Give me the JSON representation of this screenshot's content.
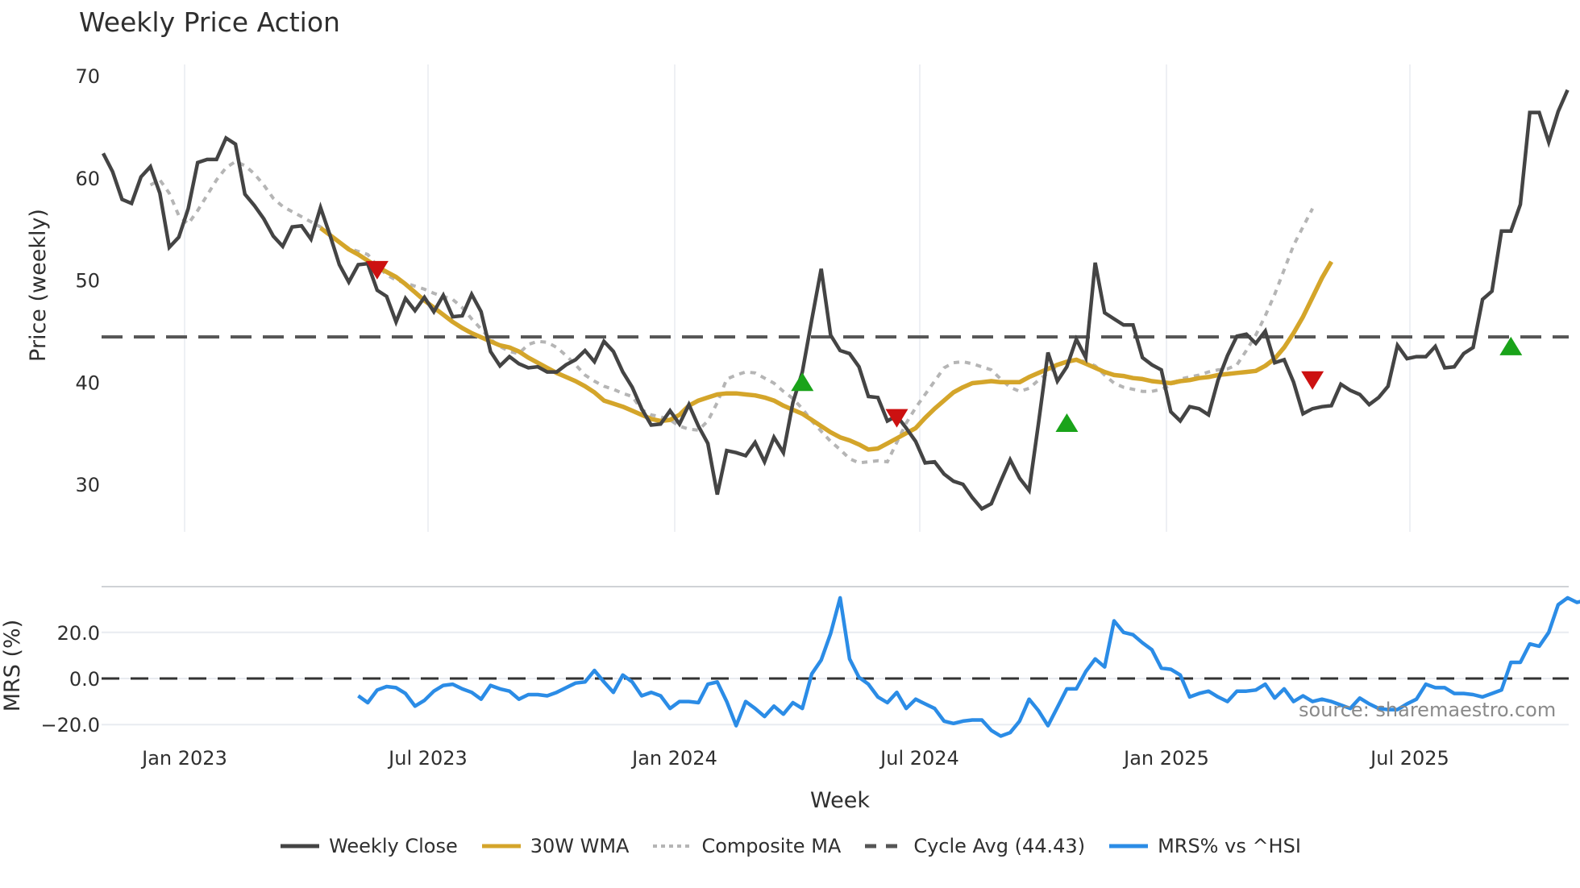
{
  "title": "Weekly Price Action",
  "source_label": "source: sharemaestro.com",
  "colors": {
    "close": "#444444",
    "wma": "#d4a52a",
    "composite": "#b5b5b5",
    "cycle": "#555555",
    "mrs": "#2b8ce6",
    "buy": "#1aa31a",
    "sell": "#cc1111",
    "grid": "#e8ebf0"
  },
  "legend": [
    {
      "key": "close",
      "label": "Weekly Close",
      "style": "solid"
    },
    {
      "key": "wma",
      "label": "30W WMA",
      "style": "solid"
    },
    {
      "key": "composite",
      "label": "Composite MA",
      "style": "dotted"
    },
    {
      "key": "cycle",
      "label": "Cycle Avg (44.43)",
      "style": "dashed"
    },
    {
      "key": "mrs",
      "label": "MRS% vs ^HSI",
      "style": "solid"
    }
  ],
  "chart_data": [
    {
      "type": "line",
      "title": "Weekly Price Action",
      "xlabel": "Week",
      "ylabel": "Price (weekly)",
      "ylim": [
        25.5,
        71
      ],
      "yticks": [
        30,
        40,
        50,
        60,
        70
      ],
      "xticks": [
        "Jan 2023",
        "Jul 2023",
        "Jan 2024",
        "Jul 2024",
        "Jan 2025",
        "Jul 2025"
      ],
      "grid": true,
      "legend_position": "bottom",
      "x_start": "2022-11-07",
      "x_step_weeks": 1,
      "series": [
        {
          "name": "Weekly Close",
          "values": [
            62.4,
            60.6,
            57.9,
            57.5,
            60.1,
            61.1,
            58.5,
            53.2,
            54.2,
            57.0,
            61.5,
            61.8,
            61.8,
            63.9,
            63.3,
            58.4,
            57.3,
            56.0,
            54.3,
            53.3,
            55.2,
            55.3,
            54.0,
            57.1,
            54.4,
            51.5,
            49.8,
            51.5,
            51.6,
            49.0,
            48.4,
            45.9,
            48.2,
            47.0,
            48.3,
            46.9,
            48.5,
            46.4,
            46.5,
            48.6,
            46.9,
            43.0,
            41.6,
            42.5,
            41.8,
            41.4,
            41.5,
            41.0,
            41.0,
            41.7,
            42.2,
            43.1,
            42.0,
            44.0,
            43.0,
            41.0,
            39.5,
            37.4,
            35.8,
            35.9,
            37.2,
            35.9,
            37.8,
            35.7,
            34.0,
            29.0,
            33.3,
            33.1,
            32.8,
            34.1,
            32.2,
            34.6,
            33.1,
            38.0,
            41.0,
            46.1,
            51.1,
            44.6,
            43.1,
            42.8,
            41.5,
            38.6,
            38.5,
            36.2,
            36.7,
            35.5,
            34.2,
            32.1,
            32.2,
            31.0,
            30.3,
            30.0,
            28.7,
            27.6,
            28.1,
            30.3,
            32.4,
            30.6,
            29.4,
            36.0,
            42.9,
            40.1,
            41.5,
            44.2,
            42.4,
            51.7,
            46.8,
            46.2,
            45.6,
            45.6,
            42.4,
            41.7,
            41.2,
            37.1,
            36.2,
            37.6,
            37.4,
            36.8,
            40.2,
            42.6,
            44.5,
            44.7,
            43.8,
            45.0,
            41.9,
            42.2,
            40.0,
            36.9,
            37.4,
            37.6,
            37.7,
            39.8,
            39.2,
            38.8,
            37.8,
            38.5,
            39.6,
            43.6,
            42.3,
            42.5,
            42.5,
            43.5,
            41.4,
            41.5,
            42.8,
            43.4,
            48.1,
            48.9,
            54.8,
            54.8,
            57.4,
            66.4,
            66.4,
            63.5,
            66.5,
            68.6
          ]
        },
        {
          "name": "30W WMA",
          "start_index": 23,
          "values": [
            55.1,
            54.4,
            53.7,
            53.0,
            52.5,
            51.9,
            51.3,
            50.8,
            50.3,
            49.6,
            48.8,
            48.0,
            47.3,
            46.6,
            45.9,
            45.3,
            44.8,
            44.4,
            44.0,
            43.6,
            43.4,
            43.0,
            42.4,
            41.9,
            41.4,
            40.9,
            40.5,
            40.1,
            39.6,
            39.0,
            38.2,
            37.9,
            37.6,
            37.2,
            36.8,
            36.4,
            36.2,
            36.3,
            36.8,
            37.7,
            38.2,
            38.5,
            38.8,
            38.9,
            38.9,
            38.8,
            38.7,
            38.5,
            38.2,
            37.7,
            37.3,
            36.9,
            36.3,
            35.7,
            35.1,
            34.6,
            34.3,
            33.9,
            33.4,
            33.5,
            34.0,
            34.5,
            35.0,
            35.5,
            36.5,
            37.4,
            38.2,
            39.0,
            39.5,
            39.9,
            40.0,
            40.1,
            40.0,
            40.0,
            40.0,
            40.5,
            40.9,
            41.3,
            41.7,
            42.0,
            42.2,
            41.8,
            41.4,
            41.0,
            40.7,
            40.6,
            40.4,
            40.3,
            40.1,
            40.0,
            39.9,
            40.1,
            40.2,
            40.4,
            40.5,
            40.7,
            40.8,
            40.9,
            41.0,
            41.1,
            41.6,
            42.3,
            43.4,
            44.8,
            46.4,
            48.3,
            50.2,
            51.8
          ]
        },
        {
          "name": "Composite MA",
          "start_index": 5,
          "values": [
            59.3,
            59.8,
            58.5,
            56.3,
            55.5,
            56.8,
            58.3,
            59.8,
            61.0,
            61.6,
            61.2,
            60.4,
            59.3,
            58.0,
            57.2,
            56.7,
            56.2,
            55.7,
            55.2,
            54.5,
            53.7,
            53.1,
            52.8,
            52.5,
            51.4,
            50.5,
            50.0,
            49.7,
            49.4,
            49.1,
            48.7,
            48.4,
            48.1,
            47.3,
            46.2,
            45.2,
            44.2,
            43.5,
            43.0,
            42.8,
            43.7,
            44.0,
            43.9,
            43.4,
            42.6,
            41.7,
            40.7,
            40.1,
            39.6,
            39.3,
            38.9,
            38.6,
            37.3,
            36.8,
            36.6,
            36.3,
            35.7,
            35.4,
            35.3,
            36.2,
            38.0,
            40.3,
            40.7,
            41.0,
            40.9,
            40.4,
            39.9,
            39.1,
            38.4,
            37.4,
            36.2,
            35.2,
            34.2,
            33.4,
            32.5,
            32.1,
            32.2,
            32.3,
            32.2,
            34.1,
            36.0,
            37.5,
            38.8,
            40.1,
            41.4,
            41.9,
            42.0,
            41.8,
            41.5,
            41.2,
            40.3,
            39.5,
            39.1,
            39.4,
            40.2,
            40.9,
            41.6,
            42.0,
            42.2,
            42.0,
            41.6,
            40.7,
            39.9,
            39.5,
            39.3,
            39.1,
            39.1,
            39.3,
            39.7,
            40.3,
            40.5,
            40.7,
            41.0,
            41.2,
            41.3,
            41.7,
            43.1,
            44.6,
            46.5,
            48.6,
            51.0,
            53.4,
            55.2,
            57.0
          ]
        },
        {
          "name": "Cycle Avg (44.43)",
          "constant": 44.43
        },
        {
          "name": "Buy signals",
          "markers": [
            {
              "index": 74,
              "value": 40.0
            },
            {
              "index": 102,
              "value": 36.0
            },
            {
              "index": 149,
              "value": 43.5
            }
          ]
        },
        {
          "name": "Sell signals",
          "markers": [
            {
              "index": 29,
              "value": 51.0
            },
            {
              "index": 84,
              "value": 36.5
            },
            {
              "index": 128,
              "value": 40.2
            }
          ]
        }
      ]
    },
    {
      "type": "line",
      "ylabel": "MRS (%)",
      "ylim": [
        -26,
        40
      ],
      "yticks": [
        -20.0,
        0.0,
        20.0
      ],
      "ytick_labels": [
        "−20.0",
        "0.0",
        "20.0"
      ],
      "x_start": "2023-05-15",
      "series": [
        {
          "name": "MRS% vs ^HSI",
          "values": [
            -7.5,
            -10.5,
            -5.0,
            -3.5,
            -4.0,
            -6.5,
            -12.0,
            -9.5,
            -5.5,
            -3.0,
            -2.5,
            -4.5,
            -6.0,
            -9.0,
            -3.0,
            -4.5,
            -5.5,
            -9.0,
            -7.0,
            -7.0,
            -7.5,
            -6.0,
            -4.0,
            -2.0,
            -1.5,
            3.5,
            -1.5,
            -6.0,
            1.5,
            -1.5,
            -7.5,
            -6.0,
            -7.5,
            -13.0,
            -10.0,
            -10.0,
            -10.5,
            -2.5,
            -1.5,
            -10.0,
            -20.5,
            -10.0,
            -13.0,
            -16.5,
            -12.0,
            -15.5,
            -10.5,
            -13.0,
            2.0,
            8.0,
            19.5,
            35.0,
            8.5,
            0.5,
            -2.5,
            -8.0,
            -10.5,
            -6.0,
            -13.0,
            -9.0,
            -11.0,
            -13.0,
            -18.5,
            -19.5,
            -18.5,
            -18.0,
            -18.0,
            -22.5,
            -25.0,
            -23.5,
            -18.5,
            -9.0,
            -14.0,
            -20.5,
            -12.5,
            -4.5,
            -4.5,
            3.0,
            8.5,
            5.0,
            25.0,
            20.0,
            19.0,
            15.5,
            12.5,
            4.5,
            4.0,
            1.5,
            -8.0,
            -6.5,
            -5.5,
            -8.0,
            -10.0,
            -5.5,
            -5.5,
            -5.0,
            -2.5,
            -8.5,
            -4.5,
            -10.0,
            -7.5,
            -10.0,
            -9.0,
            -10.0,
            -11.5,
            -13.0,
            -8.5,
            -11.0,
            -13.0,
            -13.5,
            -13.5,
            -11.0,
            -9.0,
            -2.5,
            -4.0,
            -4.0,
            -6.5,
            -6.5,
            -7.0,
            -8.0,
            -6.5,
            -5.0,
            7.0,
            7.0,
            15.0,
            14.0,
            20.0,
            32.0,
            35.0,
            33.0,
            34.0
          ]
        }
      ]
    }
  ],
  "axes": {
    "price_ylabel": "Price (weekly)",
    "mrs_ylabel": "MRS (%)",
    "xlabel": "Week"
  }
}
